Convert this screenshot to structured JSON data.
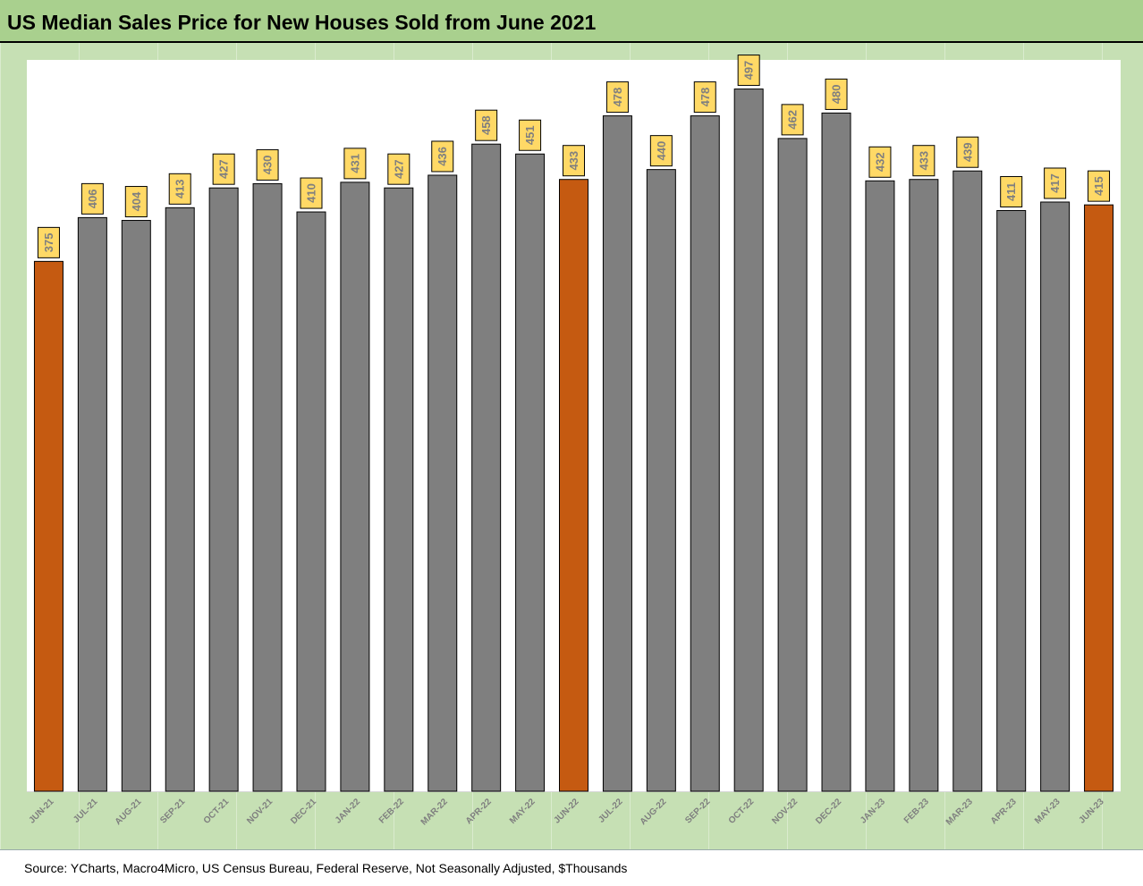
{
  "title": "US Median Sales Price for New Houses Sold from June 2021",
  "source": "Source: YCharts, Macro4Micro, US Census Bureau, Federal Reserve, Not Seasonally Adjusted, $Thousands",
  "colors": {
    "default_bar": "#7f7f7f",
    "highlight_bar": "#c55a11",
    "label_fill": "#ffd966",
    "label_text": "#7f7f7f",
    "axis_label": "#7f7f7f"
  },
  "chart_data": {
    "type": "bar",
    "title": "US Median Sales Price for New Houses Sold from June 2021",
    "xlabel": "",
    "ylabel": "",
    "ylim": [
      0,
      560
    ],
    "grid": false,
    "categories": [
      "JUN-21",
      "JUL-21",
      "AUG-21",
      "SEP-21",
      "OCT-21",
      "NOV-21",
      "DEC-21",
      "JAN-22",
      "FEB-22",
      "MAR-22",
      "APR-22",
      "MAY-22",
      "JUN-22",
      "JUL-22",
      "AUG-22",
      "SEP-22",
      "OCT-22",
      "NOV-22",
      "DEC-22",
      "JAN-23",
      "FEB-23",
      "MAR-23",
      "APR-23",
      "MAY-23",
      "JUN-23"
    ],
    "values": [
      375,
      406,
      404,
      413,
      427,
      430,
      410,
      431,
      427,
      436,
      458,
      451,
      433,
      478,
      440,
      478,
      497,
      462,
      480,
      432,
      433,
      439,
      411,
      417,
      415
    ],
    "highlighted": [
      "JUN-21",
      "JUN-22",
      "JUN-23"
    ]
  }
}
